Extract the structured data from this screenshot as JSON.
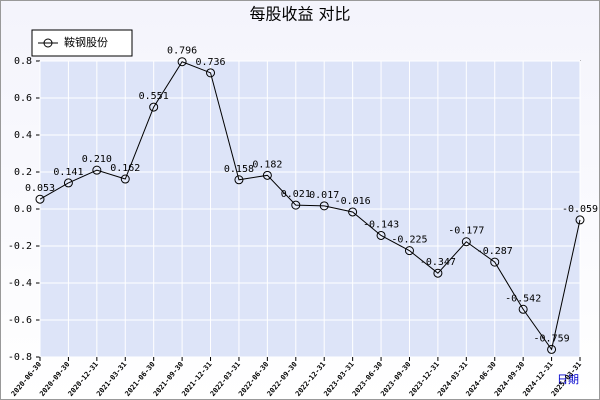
{
  "chart_data": {
    "type": "line",
    "title": "每股收益 对比",
    "xlabel": "日期",
    "categories": [
      "2020-06-30",
      "2020-09-30",
      "2020-12-31",
      "2021-03-31",
      "2021-06-30",
      "2021-09-30",
      "2021-12-31",
      "2022-03-31",
      "2022-06-30",
      "2022-09-30",
      "2022-12-31",
      "2023-03-31",
      "2023-06-30",
      "2023-09-30",
      "2023-12-31",
      "2024-03-31",
      "2024-06-30",
      "2024-09-30",
      "2024-12-31",
      "2025-03-31"
    ],
    "series": [
      {
        "name": "鞍钢股份",
        "color": "#000000",
        "values": [
          0.053,
          0.141,
          0.21,
          0.162,
          0.551,
          0.796,
          0.736,
          0.158,
          0.182,
          0.021,
          0.017,
          -0.016,
          -0.143,
          -0.225,
          -0.347,
          -0.177,
          -0.287,
          -0.542,
          -0.759,
          -0.059
        ],
        "value_labels": [
          "0.053",
          "0.141",
          "0.210",
          "0.162",
          "0.551",
          "0.796",
          "0.736",
          "0.158",
          "0.182",
          "0.021",
          "0.017",
          "-0.016",
          "-0.143",
          "-0.225",
          "-0.347",
          "-0.177",
          "-0.287",
          "-0.542",
          "-0.759",
          "-0.059"
        ]
      }
    ],
    "ylim": [
      -0.8,
      0.8
    ],
    "yticks": [
      -0.8,
      -0.6,
      -0.4,
      -0.2,
      {
        "value": 0,
        "label": "0.0"
      },
      0.2,
      0.4,
      0.6,
      0.8
    ],
    "grid": true,
    "legend": "top-left"
  }
}
